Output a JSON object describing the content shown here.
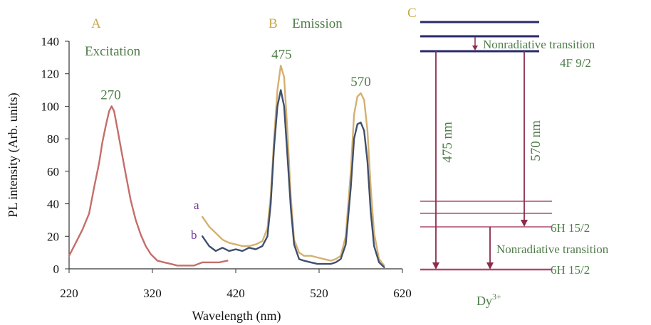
{
  "panels": {
    "a_label": "A",
    "a_title": "Excitation",
    "b_label": "B",
    "b_title": "Emission",
    "c_label": "C"
  },
  "colors": {
    "excitation": "#c46e6a",
    "emission_a": "#d4b070",
    "emission_b": "#3f4f6c",
    "green_text": "#4e7d48",
    "gold_text": "#c8a848",
    "levels": "#2a2a6a",
    "arrows": "#8b2c4c",
    "lower_levels": "#b04a6e"
  },
  "chart_data": {
    "type": "line",
    "xlabel": "Wavelength (nm)",
    "ylabel": "PL intensity (Arb. units)",
    "xlim": [
      220,
      620
    ],
    "ylim": [
      0,
      140
    ],
    "xticks": [
      220,
      320,
      420,
      520,
      620
    ],
    "yticks": [
      0,
      20,
      40,
      60,
      80,
      100,
      120,
      140
    ],
    "curve_labels": {
      "a": "a",
      "b": "b"
    },
    "annotations": [
      {
        "text": "270",
        "x": 270,
        "y": 100
      },
      {
        "text": "475",
        "x": 475,
        "y": 125
      },
      {
        "text": "570",
        "x": 570,
        "y": 108
      }
    ],
    "series": [
      {
        "key": "excitation",
        "x": [
          220,
          228,
          236,
          244,
          250,
          256,
          260,
          264,
          268,
          271,
          274,
          278,
          283,
          288,
          294,
          300,
          306,
          312,
          318,
          326,
          334,
          342,
          350,
          360,
          370,
          380,
          390,
          400,
          410
        ],
        "y": [
          8,
          16,
          24,
          34,
          50,
          65,
          78,
          88,
          97,
          100,
          97,
          86,
          72,
          58,
          42,
          30,
          21,
          14,
          9,
          5,
          4,
          3,
          2,
          2,
          2,
          4,
          4,
          4,
          5
        ]
      },
      {
        "key": "emission_a",
        "x": [
          380,
          388,
          396,
          404,
          412,
          420,
          428,
          436,
          444,
          452,
          458,
          462,
          466,
          470,
          474,
          478,
          482,
          486,
          490,
          496,
          502,
          510,
          518,
          526,
          534,
          540,
          546,
          552,
          558,
          562,
          566,
          570,
          574,
          578,
          582,
          586,
          592,
          598
        ],
        "y": [
          32,
          26,
          22,
          18,
          16,
          15,
          14,
          14,
          15,
          17,
          25,
          45,
          80,
          110,
          125,
          118,
          85,
          45,
          18,
          10,
          8,
          8,
          7,
          6,
          5,
          6,
          8,
          20,
          60,
          95,
          106,
          108,
          104,
          85,
          50,
          22,
          6,
          2
        ]
      },
      {
        "key": "emission_b",
        "x": [
          380,
          388,
          396,
          404,
          412,
          420,
          428,
          436,
          444,
          452,
          458,
          462,
          466,
          470,
          474,
          478,
          482,
          486,
          490,
          496,
          502,
          510,
          518,
          526,
          534,
          540,
          546,
          552,
          558,
          562,
          566,
          570,
          574,
          578,
          582,
          586,
          592,
          598
        ],
        "y": [
          20,
          14,
          11,
          13,
          11,
          12,
          11,
          13,
          12,
          14,
          20,
          40,
          75,
          100,
          110,
          100,
          70,
          38,
          15,
          6,
          5,
          4,
          3,
          3,
          3,
          4,
          6,
          15,
          50,
          80,
          89,
          90,
          85,
          66,
          35,
          14,
          4,
          1
        ]
      }
    ]
  },
  "diagram": {
    "nonradiative_top": "Nonradiative transition",
    "upper_level": "4F 9/2",
    "arrow1": "475 nm",
    "arrow2": "570 nm",
    "level_mid": "6H 15/2",
    "nonradiative_bottom": "Nonradiative transition",
    "level_bottom": "6H 15/2",
    "ion_base": "Dy",
    "ion_sup": "3+"
  }
}
